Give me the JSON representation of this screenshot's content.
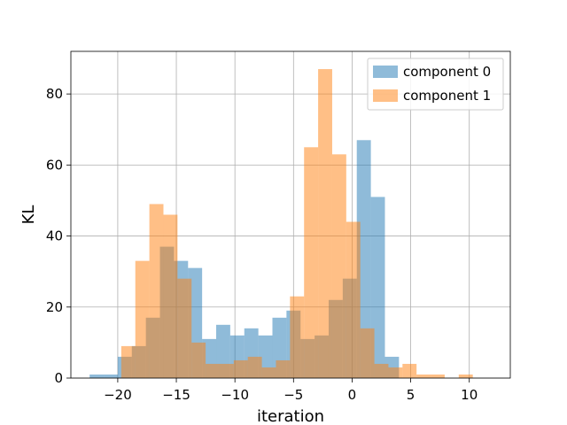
{
  "chart_data": {
    "type": "bar",
    "histogram": true,
    "xlabel": "iteration",
    "ylabel": "KL",
    "xlim": [
      -24,
      13.5
    ],
    "ylim": [
      0,
      92
    ],
    "xticks": [
      -20,
      -15,
      -10,
      -5,
      0,
      5,
      10
    ],
    "xtick_labels": [
      "−20",
      "−15",
      "−10",
      "−5",
      "0",
      "5",
      "10"
    ],
    "yticks": [
      0,
      20,
      40,
      60,
      80
    ],
    "ytick_labels": [
      "0",
      "20",
      "40",
      "60",
      "80"
    ],
    "grid": true,
    "legend_position": "top-right",
    "series": [
      {
        "name": "component 0",
        "color": "#1f77b4",
        "opacity": 0.5,
        "bins": [
          {
            "x0": -22.4,
            "x1": -21.2,
            "count": 1
          },
          {
            "x0": -21.2,
            "x1": -20.0,
            "count": 1
          },
          {
            "x0": -20.0,
            "x1": -18.8,
            "count": 6
          },
          {
            "x0": -18.8,
            "x1": -17.6,
            "count": 9
          },
          {
            "x0": -17.6,
            "x1": -16.4,
            "count": 17
          },
          {
            "x0": -16.4,
            "x1": -15.2,
            "count": 37
          },
          {
            "x0": -15.2,
            "x1": -14.0,
            "count": 33
          },
          {
            "x0": -14.0,
            "x1": -12.8,
            "count": 31
          },
          {
            "x0": -12.8,
            "x1": -11.6,
            "count": 11
          },
          {
            "x0": -11.6,
            "x1": -10.4,
            "count": 15
          },
          {
            "x0": -10.4,
            "x1": -9.2,
            "count": 12
          },
          {
            "x0": -9.2,
            "x1": -8.0,
            "count": 14
          },
          {
            "x0": -8.0,
            "x1": -6.8,
            "count": 12
          },
          {
            "x0": -6.8,
            "x1": -5.6,
            "count": 17
          },
          {
            "x0": -5.6,
            "x1": -4.4,
            "count": 19
          },
          {
            "x0": -4.4,
            "x1": -3.2,
            "count": 11
          },
          {
            "x0": -3.2,
            "x1": -2.0,
            "count": 12
          },
          {
            "x0": -2.0,
            "x1": -0.8,
            "count": 22
          },
          {
            "x0": -0.8,
            "x1": 0.4,
            "count": 28
          },
          {
            "x0": 0.4,
            "x1": 1.6,
            "count": 67
          },
          {
            "x0": 1.6,
            "x1": 2.8,
            "count": 51
          },
          {
            "x0": 2.8,
            "x1": 4.0,
            "count": 6
          }
        ]
      },
      {
        "name": "component 1",
        "color": "#ff7f0e",
        "opacity": 0.5,
        "bins": [
          {
            "x0": -19.7,
            "x1": -18.5,
            "count": 9
          },
          {
            "x0": -18.5,
            "x1": -17.3,
            "count": 33
          },
          {
            "x0": -17.3,
            "x1": -16.1,
            "count": 49
          },
          {
            "x0": -16.1,
            "x1": -14.9,
            "count": 46
          },
          {
            "x0": -14.9,
            "x1": -13.7,
            "count": 28
          },
          {
            "x0": -13.7,
            "x1": -12.5,
            "count": 10
          },
          {
            "x0": -12.5,
            "x1": -11.3,
            "count": 4
          },
          {
            "x0": -11.3,
            "x1": -10.1,
            "count": 4
          },
          {
            "x0": -10.1,
            "x1": -8.9,
            "count": 5
          },
          {
            "x0": -8.9,
            "x1": -7.7,
            "count": 6
          },
          {
            "x0": -7.7,
            "x1": -6.5,
            "count": 3
          },
          {
            "x0": -6.5,
            "x1": -5.3,
            "count": 5
          },
          {
            "x0": -5.3,
            "x1": -4.1,
            "count": 23
          },
          {
            "x0": -4.1,
            "x1": -2.9,
            "count": 65
          },
          {
            "x0": -2.9,
            "x1": -1.7,
            "count": 87
          },
          {
            "x0": -1.7,
            "x1": -0.5,
            "count": 63
          },
          {
            "x0": -0.5,
            "x1": 0.7,
            "count": 44
          },
          {
            "x0": 0.7,
            "x1": 1.9,
            "count": 14
          },
          {
            "x0": 1.9,
            "x1": 3.1,
            "count": 4
          },
          {
            "x0": 3.1,
            "x1": 4.3,
            "count": 3
          },
          {
            "x0": 4.3,
            "x1": 5.5,
            "count": 4
          },
          {
            "x0": 5.5,
            "x1": 6.7,
            "count": 1
          },
          {
            "x0": 6.7,
            "x1": 7.9,
            "count": 1
          },
          {
            "x0": 7.9,
            "x1": 9.1,
            "count": 0
          },
          {
            "x0": 9.1,
            "x1": 10.3,
            "count": 1
          }
        ]
      }
    ]
  }
}
